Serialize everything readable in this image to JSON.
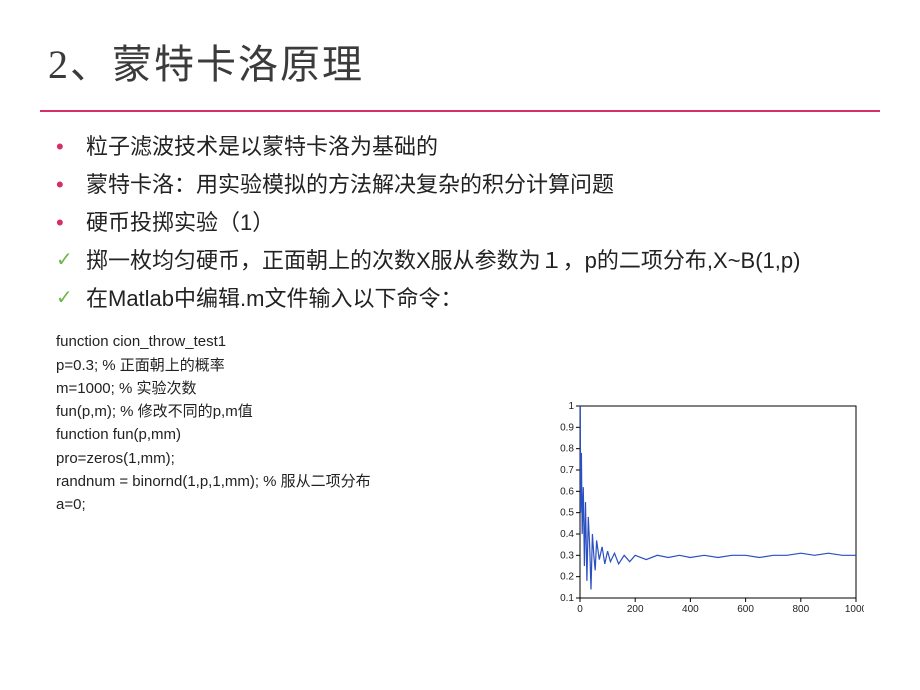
{
  "title": "2、蒙特卡洛原理",
  "bullets": [
    {
      "marker": "dot",
      "text": "粒子滤波技术是以蒙特卡洛为基础的"
    },
    {
      "marker": "dot",
      "text": "蒙特卡洛：用实验模拟的方法解决复杂的积分计算问题"
    },
    {
      "marker": "dot",
      "text": "硬币投掷实验（1）"
    },
    {
      "marker": "check",
      "text": "掷一枚均匀硬币，正面朝上的次数X服从参数为１，p的二项分布,X~B(1,p)"
    },
    {
      "marker": "check",
      "text": "在Matlab中编辑.m文件输入以下命令："
    }
  ],
  "code": [
    "function cion_throw_test1",
    "p=0.3;  % 正面朝上的概率",
    "m=1000; % 实验次数",
    "fun(p,m); %  修改不同的p,m值",
    "function fun(p,mm)",
    "pro=zeros(1,mm);",
    "randnum = binornd(1,p,1,mm); % 服从二项分布",
    "a=0;"
  ],
  "chart": {
    "type": "line",
    "xlim": [
      0,
      1000
    ],
    "ylim": [
      0.1,
      1.0
    ],
    "xticks": [
      0,
      200,
      400,
      600,
      800,
      1000
    ],
    "yticks": [
      0.1,
      0.2,
      0.3,
      0.4,
      0.5,
      0.6,
      0.7,
      0.8,
      0.9,
      1.0
    ],
    "tick_fontsize": 10,
    "tick_color": "#222222",
    "axis_color": "#000000",
    "line_color": "#2a4fbf",
    "line_width": 1.2,
    "background": "#ffffff",
    "data": [
      [
        1,
        1.0
      ],
      [
        2,
        0.5
      ],
      [
        5,
        0.78
      ],
      [
        8,
        0.4
      ],
      [
        12,
        0.62
      ],
      [
        16,
        0.25
      ],
      [
        20,
        0.55
      ],
      [
        25,
        0.18
      ],
      [
        30,
        0.48
      ],
      [
        35,
        0.34
      ],
      [
        40,
        0.14
      ],
      [
        45,
        0.4
      ],
      [
        50,
        0.3
      ],
      [
        55,
        0.23
      ],
      [
        60,
        0.37
      ],
      [
        70,
        0.28
      ],
      [
        80,
        0.34
      ],
      [
        90,
        0.26
      ],
      [
        100,
        0.32
      ],
      [
        110,
        0.27
      ],
      [
        125,
        0.31
      ],
      [
        140,
        0.26
      ],
      [
        160,
        0.3
      ],
      [
        180,
        0.27
      ],
      [
        200,
        0.3
      ],
      [
        240,
        0.28
      ],
      [
        280,
        0.3
      ],
      [
        320,
        0.29
      ],
      [
        360,
        0.3
      ],
      [
        400,
        0.29
      ],
      [
        450,
        0.3
      ],
      [
        500,
        0.29
      ],
      [
        550,
        0.3
      ],
      [
        600,
        0.3
      ],
      [
        650,
        0.29
      ],
      [
        700,
        0.3
      ],
      [
        750,
        0.3
      ],
      [
        800,
        0.31
      ],
      [
        850,
        0.3
      ],
      [
        900,
        0.31
      ],
      [
        950,
        0.3
      ],
      [
        1000,
        0.3
      ]
    ]
  },
  "colors": {
    "accent": "#d62e6a",
    "check": "#6fb548",
    "text": "#222222",
    "title": "#3b3b3b"
  }
}
